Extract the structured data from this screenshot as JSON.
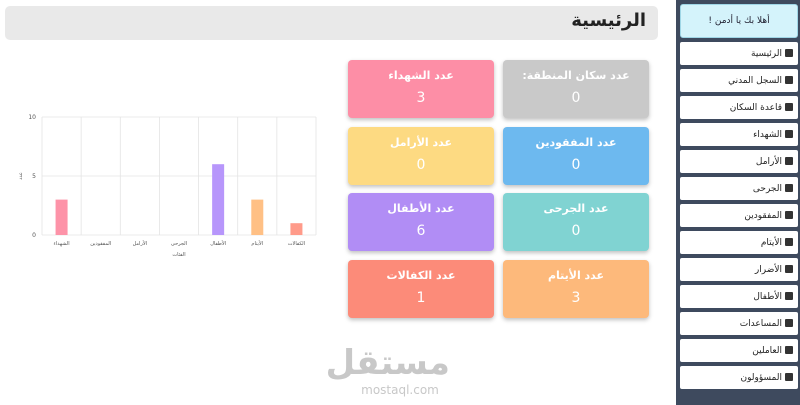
{
  "header": {
    "title": "الرئيسية"
  },
  "sidebar": {
    "greeting": "أهلا بك يا أدمن !",
    "items": [
      "الرئيسية",
      "السجل المدني",
      "قاعدة السكان",
      "الشهداء",
      "الأرامل",
      "الجرحى",
      "المفقودين",
      "الأيتام",
      "الأضرار",
      "الأطفال",
      "المساعدات",
      "العاملين",
      "المسؤولون"
    ]
  },
  "cards": [
    {
      "label": "عدد سكان المنطقة:",
      "value": 0,
      "color": "#c9c9c9"
    },
    {
      "label": "عدد الشهداء",
      "value": 3,
      "color": "#fd8ea6"
    },
    {
      "label": "عدد المفقودين",
      "value": 0,
      "color": "#6db9ef"
    },
    {
      "label": "عدد الأرامل",
      "value": 0,
      "color": "#fdda82"
    },
    {
      "label": "عدد الجرحى",
      "value": 0,
      "color": "#80d3d2"
    },
    {
      "label": "عدد الأطفال",
      "value": 6,
      "color": "#b18df5"
    },
    {
      "label": "عدد الأيتام",
      "value": 3,
      "color": "#fdb97b"
    },
    {
      "label": "عدد الكفالات",
      "value": 1,
      "color": "#fc8b79"
    }
  ],
  "chart_data": {
    "type": "bar",
    "x_label": "الفئات",
    "y_label": "عدد",
    "categories": [
      "الشهداء",
      "المفقودين",
      "الأرامل",
      "الجرحى",
      "الأطفال",
      "الأيتام",
      "الكفالات"
    ],
    "values": [
      3,
      0,
      0,
      0,
      6,
      3,
      1
    ],
    "colors": [
      "#fd93a8",
      "#6db9ef",
      "#fdda82",
      "#80d3d2",
      "#b796fb",
      "#ffc085",
      "#ff9b8a"
    ],
    "ylim": [
      0,
      10
    ],
    "yticks": [
      0,
      5,
      10
    ],
    "grid": true
  },
  "watermark": {
    "logo": "مستقل",
    "site": "mostaql.com"
  }
}
